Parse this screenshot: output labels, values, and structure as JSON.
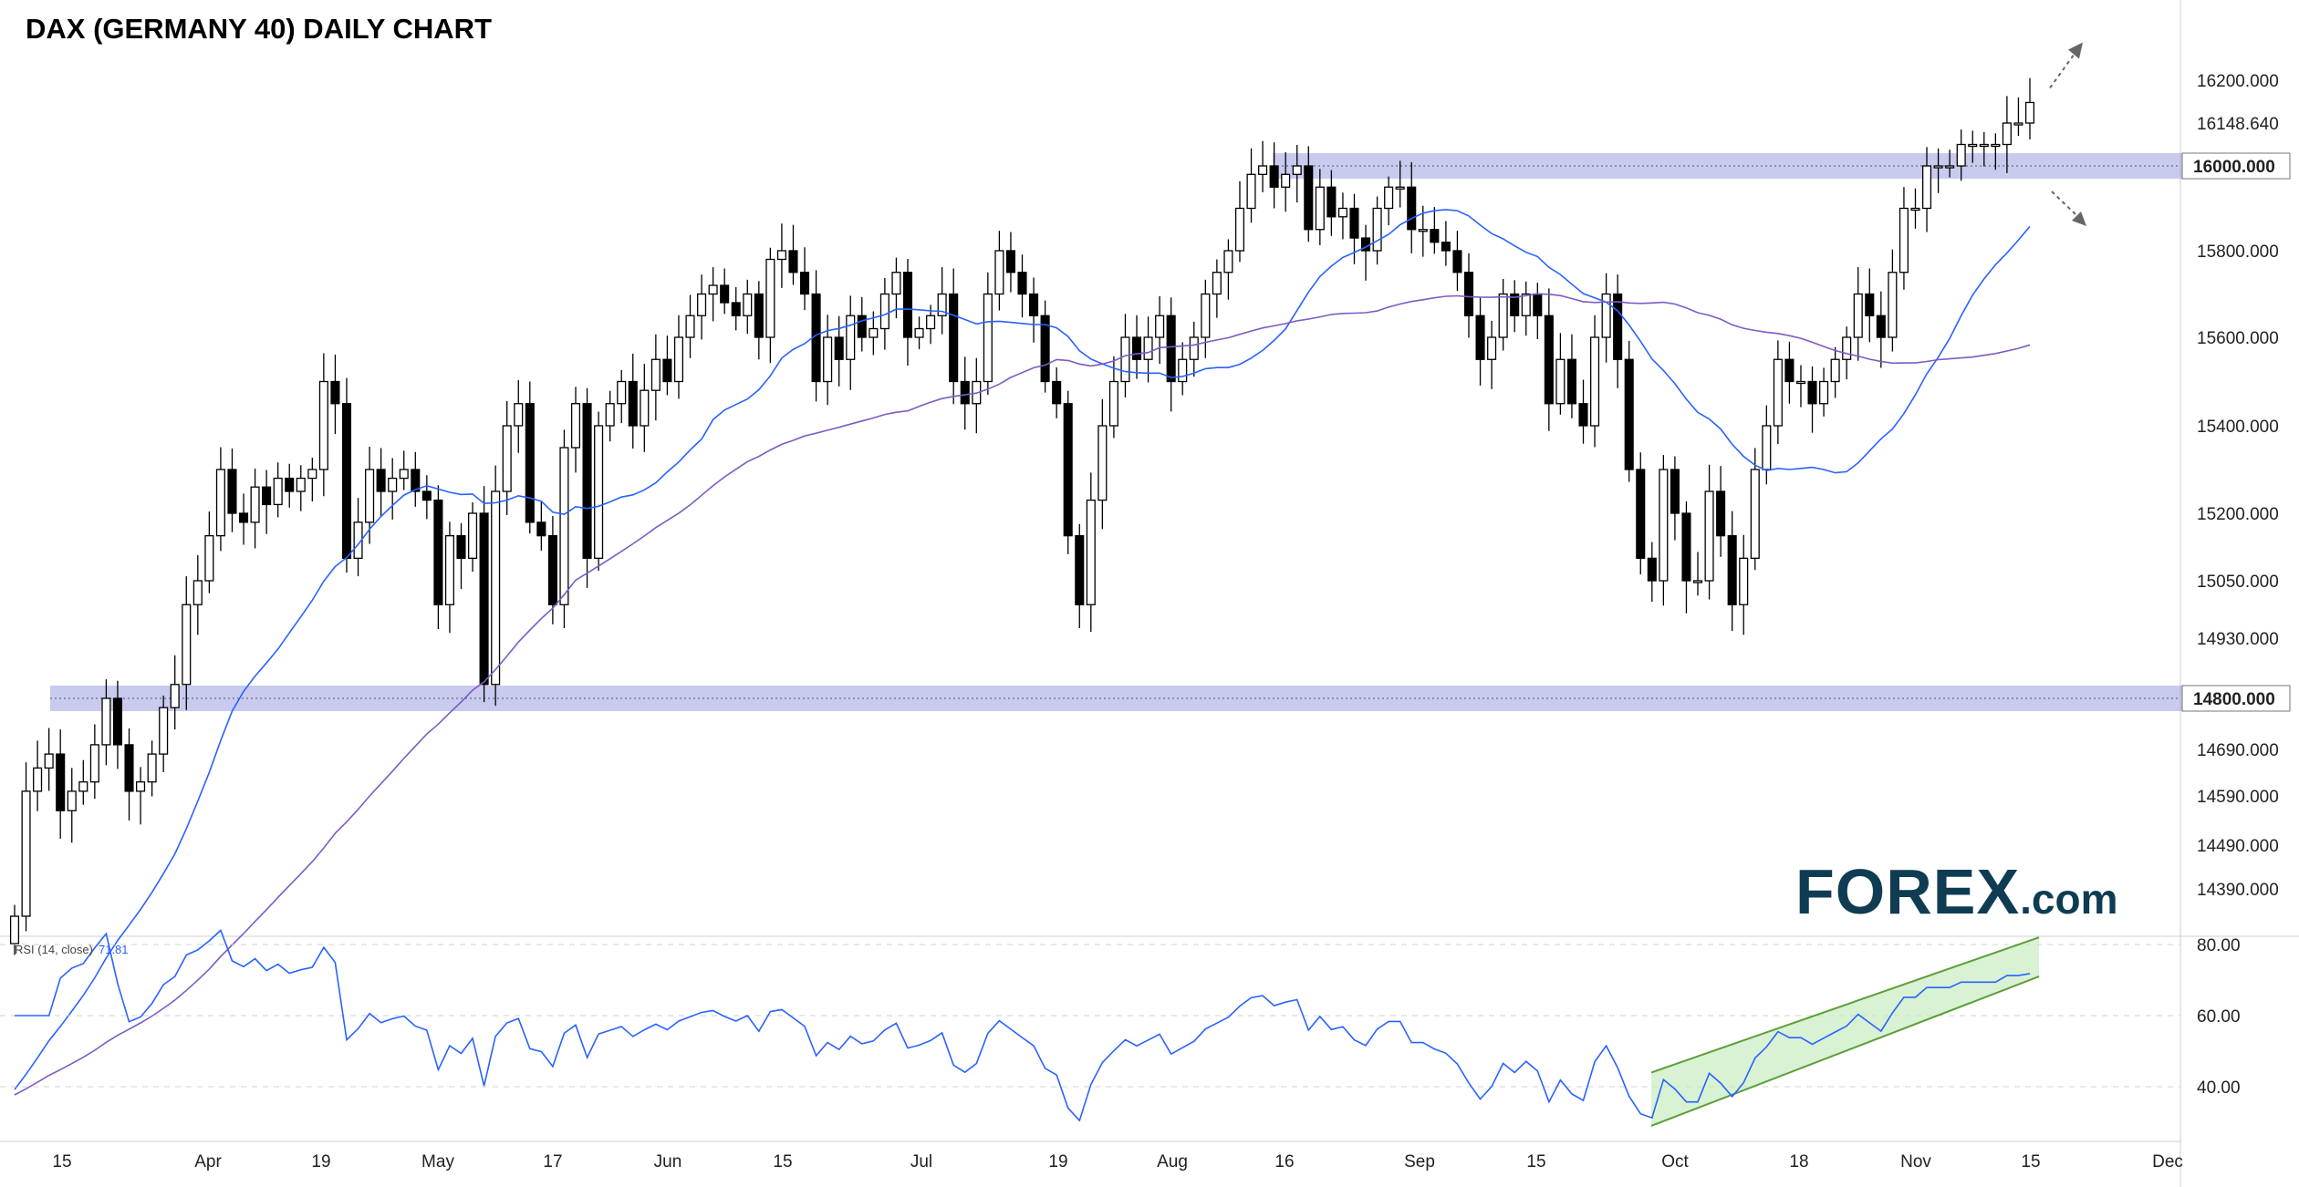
{
  "title": "DAX (GERMANY 40) DAILY CHART",
  "brand": {
    "logo_text": "FOREX",
    "logo_suffix": ".com",
    "color": "#0f3c52",
    "accent": "#1f9d5c"
  },
  "rsi_panel": {
    "label": "RSI (14, close)",
    "value": "71.81"
  },
  "colors": {
    "candle_up": "#ffffff",
    "candle_down": "#000000",
    "zone": "#9b9fe0",
    "ma_fast": "#2962ff",
    "ma_slow": "#7b5cc4",
    "rsi_line": "#2962ff",
    "channel": "#5c9e3a"
  },
  "chart_data": {
    "type": "candlestick",
    "title": "DAX (GERMANY 40) DAILY CHART",
    "y_ticks": [
      "16200.000",
      "16000.000",
      "15800.000",
      "15600.000",
      "15400.000",
      "15200.000",
      "15050.000",
      "14930.000",
      "14800.000",
      "14690.000",
      "14590.000",
      "14490.000",
      "14390.000"
    ],
    "last_price": "16148.640",
    "x_ticks": [
      "15",
      "Apr",
      "19",
      "May",
      "17",
      "Jun",
      "15",
      "Jul",
      "19",
      "Aug",
      "16",
      "Sep",
      "15",
      "Oct",
      "18",
      "Nov",
      "15",
      "Dec"
    ],
    "support_resistance": [
      {
        "label": "16000.000",
        "price": 16000
      },
      {
        "label": "14800.000",
        "price": 14800
      }
    ],
    "rsi_ticks": [
      "80.00",
      "60.00",
      "40.00"
    ],
    "rsi_last": 71.81,
    "series": [
      {
        "name": "Price",
        "close": [
          14330,
          14600,
          14650,
          14680,
          14560,
          14600,
          14620,
          14700,
          14800,
          14700,
          14600,
          14620,
          14680,
          14780,
          14830,
          15000,
          15050,
          15150,
          15300,
          15200,
          15180,
          15260,
          15220,
          15280,
          15250,
          15280,
          15300,
          15500,
          15450,
          15100,
          15180,
          15300,
          15250,
          15280,
          15300,
          15250,
          15230,
          15000,
          15150,
          15100,
          15200,
          14830,
          15250,
          15400,
          15450,
          15180,
          15150,
          15000,
          15350,
          15450,
          15100,
          15400,
          15450,
          15500,
          15400,
          15480,
          15550,
          15500,
          15600,
          15650,
          15700,
          15720,
          15680,
          15650,
          15700,
          15600,
          15780,
          15800,
          15750,
          15700,
          15500,
          15600,
          15550,
          15650,
          15600,
          15620,
          15700,
          15750,
          15600,
          15620,
          15650,
          15700,
          15500,
          15450,
          15500,
          15700,
          15800,
          15750,
          15700,
          15650,
          15500,
          15450,
          15150,
          15000,
          15230,
          15400,
          15500,
          15600,
          15550,
          15600,
          15650,
          15500,
          15550,
          15600,
          15700,
          15750,
          15800,
          15900,
          15980,
          16000,
          15950,
          15980,
          16000,
          15850,
          15950,
          15880,
          15900,
          15830,
          15800,
          15900,
          15950,
          15950,
          15850,
          15850,
          15820,
          15800,
          15750,
          15650,
          15550,
          15600,
          15700,
          15650,
          15700,
          15650,
          15450,
          15550,
          15450,
          15400,
          15600,
          15700,
          15550,
          15300,
          15100,
          15050,
          15300,
          15200,
          15050,
          15050,
          15250,
          15150,
          15000,
          15100,
          15300,
          15400,
          15550,
          15500,
          15500,
          15450,
          15500,
          15550,
          15600,
          15700,
          15650,
          15600,
          15750,
          15900,
          15900,
          16000,
          16000,
          16000,
          16050,
          16050,
          16050,
          16050,
          16100,
          16100,
          16148
        ],
        "open_offset_note": ""
      },
      {
        "name": "SMA fast"
      },
      {
        "name": "SMA slow"
      },
      {
        "name": "RSI (14, close)"
      }
    ]
  }
}
